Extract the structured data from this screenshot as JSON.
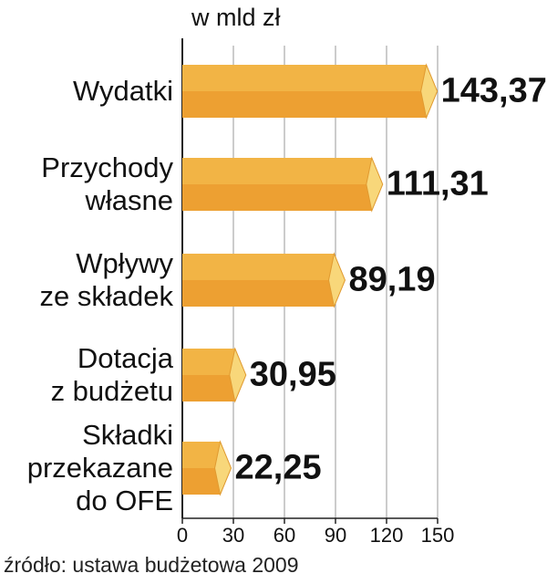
{
  "chart_data": {
    "type": "bar",
    "orientation": "horizontal",
    "unit_label": "w mld zł",
    "categories": [
      "Wydatki",
      "Przychody\nwłasne",
      "Wpływy\nze składek",
      "Dotacja\nz budżetu",
      "Składki\nprzekazane\ndo OFE"
    ],
    "values": [
      143.37,
      111.31,
      89.19,
      30.95,
      22.25
    ],
    "value_labels": [
      "143,37",
      "111,31",
      "89,19",
      "30,95",
      "22,25"
    ],
    "color": "#eda032",
    "xlim": [
      0,
      150
    ],
    "xticks": [
      0,
      30,
      60,
      90,
      120,
      150
    ],
    "grid": true,
    "source": "źródło: ustawa budżetowa 2009"
  }
}
